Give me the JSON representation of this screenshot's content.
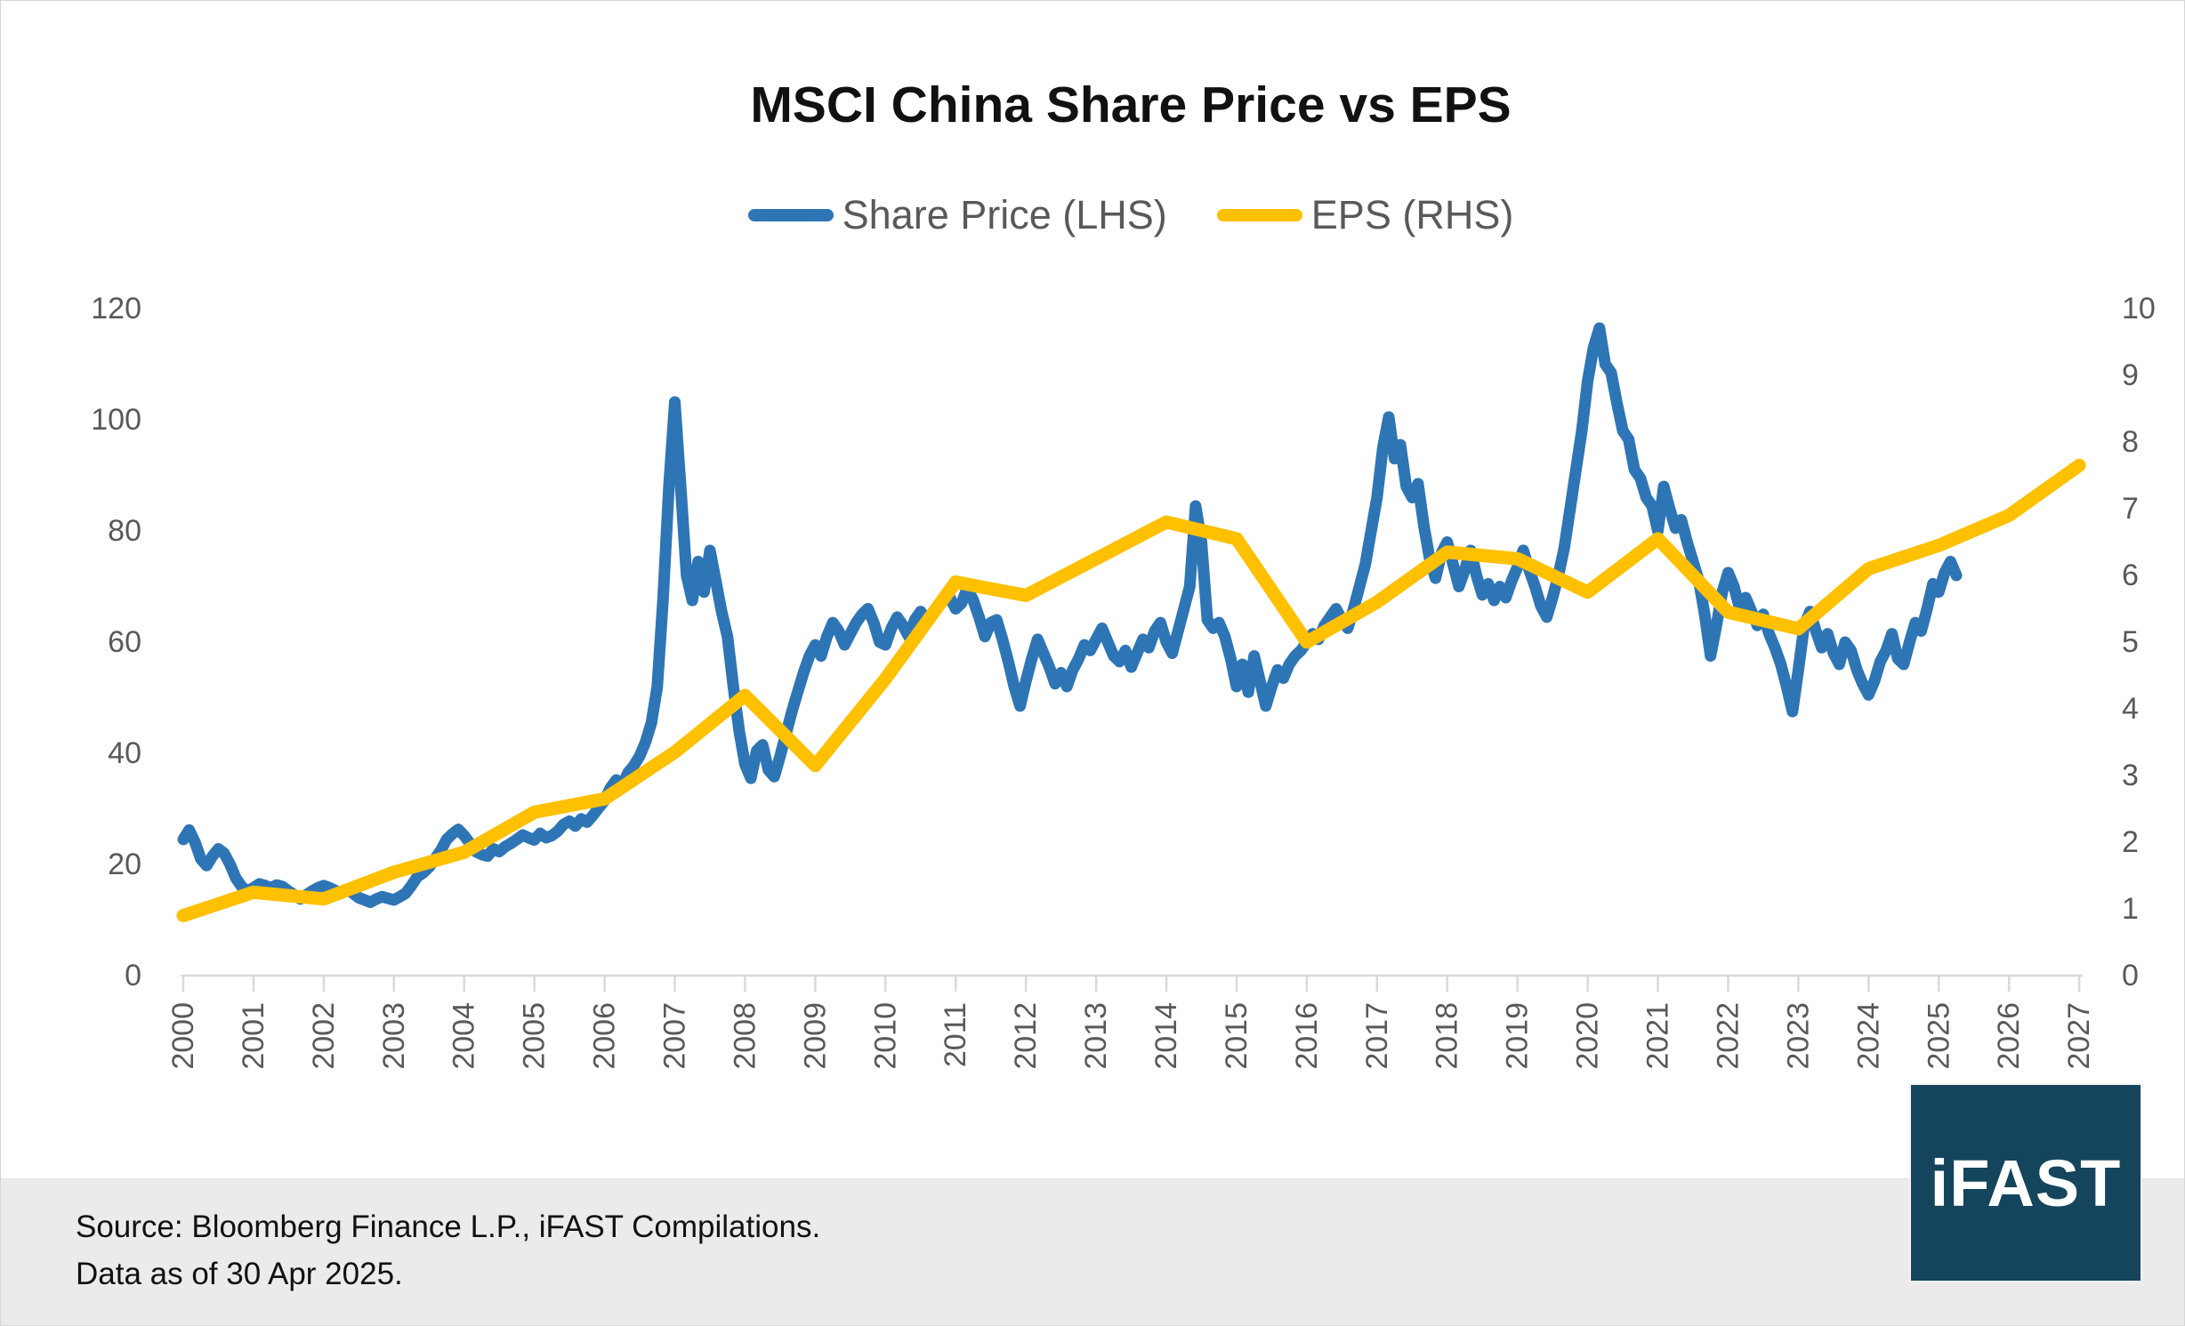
{
  "title": "MSCI China Share Price vs EPS",
  "legend": [
    {
      "label": "Share Price (LHS)",
      "color": "#2E75B6"
    },
    {
      "label": "EPS (RHS)",
      "color": "#FFC000"
    }
  ],
  "footer": {
    "source_line": "Source: Bloomberg Finance L.P., iFAST Compilations.",
    "asof_line": "Data as of 30 Apr 2025."
  },
  "logo": {
    "text": "iFAST",
    "bg_color": "#14455C"
  },
  "colors": {
    "share_price_line": "#2E75B6",
    "eps_line": "#FFC000",
    "axis_text": "#595959",
    "axis_line": "#D9D9D9",
    "title_text": "#111111"
  },
  "chart_data": {
    "type": "line",
    "title": "MSCI China Share Price vs EPS",
    "grid": false,
    "legend_position": "top",
    "x_axis": {
      "tick_labels": [
        "2000",
        "2001",
        "2002",
        "2003",
        "2004",
        "2005",
        "2006",
        "2007",
        "2008",
        "2009",
        "2010",
        "2011",
        "2012",
        "2013",
        "2014",
        "2015",
        "2016",
        "2017",
        "2018",
        "2019",
        "2020",
        "2021",
        "2022",
        "2023",
        "2024",
        "2025",
        "2026",
        "2027"
      ],
      "range": [
        2000,
        2027
      ]
    },
    "left_axis": {
      "label": "Share Price",
      "ticks": [
        0,
        20,
        40,
        60,
        80,
        100,
        120
      ],
      "range": [
        0,
        120
      ]
    },
    "right_axis": {
      "label": "EPS",
      "ticks": [
        0,
        1,
        2,
        3,
        4,
        5,
        6,
        7,
        8,
        9,
        10
      ],
      "range": [
        0,
        10
      ]
    },
    "series": [
      {
        "name": "Share Price (LHS)",
        "axis": "left",
        "color": "#2E75B6",
        "stroke_width": 13,
        "x_start_year": 2000.0,
        "x_step_years": 0.0833333,
        "values": [
          24.5,
          26.2,
          24.0,
          21.0,
          19.8,
          21.5,
          22.8,
          22.0,
          20.0,
          17.5,
          16.0,
          15.2,
          15.8,
          16.5,
          16.2,
          15.8,
          16.3,
          16.0,
          15.2,
          14.5,
          13.8,
          14.5,
          15.2,
          15.8,
          16.2,
          15.8,
          15.3,
          14.8,
          15.5,
          14.8,
          14.0,
          13.6,
          13.2,
          13.8,
          14.2,
          13.9,
          13.6,
          14.2,
          14.8,
          16.2,
          17.8,
          18.5,
          19.5,
          21.0,
          22.5,
          24.5,
          25.5,
          26.3,
          25.2,
          23.8,
          22.3,
          21.8,
          21.5,
          22.8,
          22.3,
          23.2,
          23.8,
          24.5,
          25.3,
          24.8,
          24.4,
          25.6,
          24.8,
          25.2,
          26.0,
          27.2,
          27.8,
          26.9,
          28.2,
          27.6,
          28.8,
          30.2,
          31.5,
          33.8,
          35.2,
          34.2,
          36.5,
          37.8,
          39.5,
          42.0,
          45.5,
          52.0,
          68.0,
          88.0,
          103.2,
          88.0,
          72.0,
          67.5,
          74.5,
          69.0,
          76.5,
          71.0,
          65.5,
          61.0,
          52.0,
          44.0,
          38.0,
          35.5,
          40.5,
          41.5,
          37.0,
          35.8,
          39.5,
          43.5,
          47.5,
          51.0,
          54.5,
          57.5,
          59.5,
          57.5,
          61.0,
          63.5,
          62.0,
          59.5,
          61.5,
          63.5,
          65.0,
          66.0,
          63.5,
          60.0,
          59.5,
          62.5,
          64.5,
          63.0,
          61.0,
          64.0,
          65.5,
          64.0,
          65.0,
          66.5,
          67.5,
          68.0,
          66.0,
          67.0,
          69.8,
          67.5,
          64.5,
          61.0,
          63.5,
          64.0,
          60.5,
          56.5,
          52.0,
          48.5,
          53.0,
          57.0,
          60.5,
          58.0,
          55.5,
          52.5,
          54.5,
          52.0,
          55.0,
          57.0,
          59.5,
          58.5,
          60.5,
          62.5,
          60.0,
          57.5,
          56.5,
          58.5,
          55.5,
          58.0,
          60.5,
          59.0,
          62.0,
          63.5,
          60.0,
          58.0,
          62.0,
          66.0,
          70.0,
          84.5,
          78.0,
          64.0,
          62.5,
          63.5,
          61.0,
          57.0,
          52.0,
          56.0,
          51.0,
          57.5,
          53.0,
          48.5,
          52.0,
          55.0,
          53.5,
          56.0,
          57.5,
          58.5,
          60.0,
          61.5,
          60.5,
          63.0,
          64.5,
          66.0,
          64.0,
          62.5,
          66.0,
          70.0,
          74.0,
          80.0,
          86.0,
          95.0,
          100.5,
          93.0,
          95.5,
          88.0,
          86.0,
          88.5,
          81.0,
          75.0,
          71.5,
          76.0,
          78.0,
          74.0,
          70.0,
          73.0,
          76.5,
          72.0,
          68.5,
          70.5,
          67.5,
          70.0,
          68.0,
          71.0,
          73.5,
          76.5,
          73.0,
          70.0,
          66.5,
          64.5,
          68.0,
          72.0,
          77.0,
          84.0,
          91.0,
          98.0,
          107.0,
          113.0,
          116.5,
          110.0,
          108.5,
          103.0,
          98.0,
          96.5,
          91.0,
          89.5,
          86.0,
          84.5,
          80.0,
          88.0,
          84.0,
          80.5,
          82.0,
          78.0,
          74.5,
          71.0,
          65.0,
          57.5,
          63.0,
          69.0,
          72.5,
          70.0,
          66.0,
          68.0,
          65.5,
          63.0,
          65.0,
          61.5,
          59.0,
          56.0,
          52.0,
          47.5,
          55.0,
          63.0,
          65.5,
          62.0,
          59.0,
          61.5,
          58.0,
          56.0,
          60.0,
          58.5,
          55.0,
          52.5,
          50.5,
          53.0,
          56.5,
          58.5,
          61.5,
          57.0,
          56.0,
          60.0,
          63.5,
          62.0,
          66.0,
          70.5,
          69.0,
          72.5,
          74.5,
          72.0
        ]
      },
      {
        "name": "EPS (RHS)",
        "axis": "right",
        "color": "#FFC000",
        "stroke_width": 15,
        "x": [
          2000,
          2001,
          2002,
          2003,
          2004,
          2005,
          2006,
          2007,
          2008,
          2009,
          2010,
          2011,
          2012,
          2013,
          2014,
          2015,
          2016,
          2017,
          2018,
          2019,
          2020,
          2021,
          2022,
          2023,
          2024,
          2025,
          2026,
          2027
        ],
        "values": [
          0.9,
          1.25,
          1.15,
          1.55,
          1.85,
          2.45,
          2.65,
          3.35,
          4.2,
          3.15,
          4.45,
          5.9,
          5.7,
          6.25,
          6.8,
          6.55,
          5.0,
          5.6,
          6.35,
          6.25,
          5.75,
          6.55,
          5.45,
          5.2,
          6.1,
          6.45,
          6.9,
          7.65
        ]
      }
    ]
  }
}
